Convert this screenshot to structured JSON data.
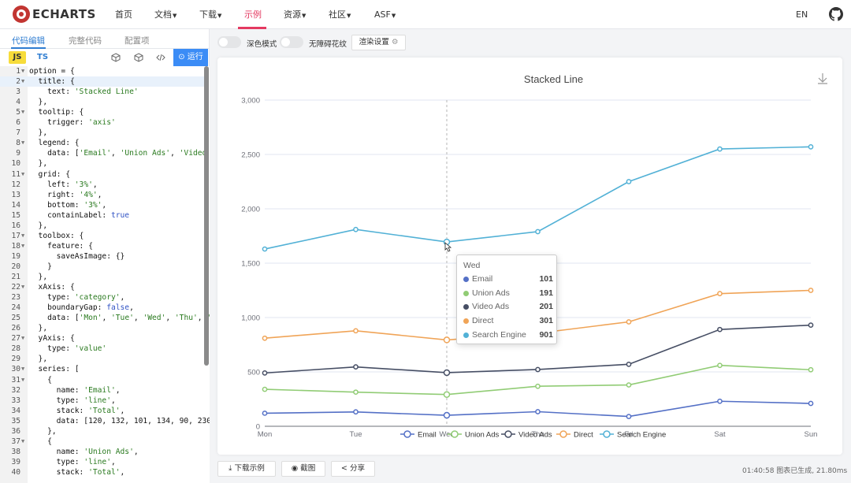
{
  "navbar": {
    "logo_text": "ECHARTS",
    "items": [
      {
        "label": "首页",
        "dropdown": false,
        "active": false
      },
      {
        "label": "文档",
        "dropdown": true,
        "active": false
      },
      {
        "label": "下载",
        "dropdown": true,
        "active": false
      },
      {
        "label": "示例",
        "dropdown": false,
        "active": true
      },
      {
        "label": "资源",
        "dropdown": true,
        "active": false
      },
      {
        "label": "社区",
        "dropdown": true,
        "active": false
      },
      {
        "label": "ASF",
        "dropdown": true,
        "active": false
      }
    ],
    "lang": "EN",
    "github_icon": "github-icon",
    "accent": "#e43961"
  },
  "editor_panel": {
    "tabs": [
      "代码编辑",
      "完整代码",
      "配置项"
    ],
    "active_tab": "代码编辑",
    "js_label": "JS",
    "ts_label": "TS",
    "run_label": "运行",
    "code_lines": [
      "option = {",
      "  title: {",
      "    text: 'Stacked Line'",
      "  },",
      "  tooltip: {",
      "    trigger: 'axis'",
      "  },",
      "  legend: {",
      "    data: ['Email', 'Union Ads', 'Video Ads'",
      "  },",
      "  grid: {",
      "    left: '3%',",
      "    right: '4%',",
      "    bottom: '3%',",
      "    containLabel: true",
      "  },",
      "  toolbox: {",
      "    feature: {",
      "      saveAsImage: {}",
      "    }",
      "  },",
      "  xAxis: {",
      "    type: 'category',",
      "    boundaryGap: false,",
      "    data: ['Mon', 'Tue', 'Wed', 'Thu', 'Fr",
      "  },",
      "  yAxis: {",
      "    type: 'value'",
      "  },",
      "  series: [",
      "    {",
      "      name: 'Email',",
      "      type: 'line',",
      "      stack: 'Total',",
      "      data: [120, 132, 101, 134, 90, 230,",
      "    },",
      "    {",
      "      name: 'Union Ads',",
      "      type: 'line',",
      "      stack: 'Total',"
    ],
    "fold_lines": [
      1,
      2,
      5,
      8,
      11,
      17,
      18,
      22,
      27,
      30,
      31,
      37
    ]
  },
  "options_bar": {
    "dark_mode_label": "深色模式",
    "decal_label": "无障碍花纹",
    "render_settings_label": "渲染设置"
  },
  "bottom_bar": {
    "download_label": "下载示例",
    "screenshot_label": "截图",
    "share_label": "分享",
    "status_text": "01:40:58  图表已生成, 21.80ms"
  },
  "tooltip": {
    "title": "Wed",
    "rows": [
      {
        "name": "Email",
        "value": "101"
      },
      {
        "name": "Union Ads",
        "value": "191"
      },
      {
        "name": "Video Ads",
        "value": "201"
      },
      {
        "name": "Direct",
        "value": "301"
      },
      {
        "name": "Search Engine",
        "value": "901"
      }
    ]
  },
  "chart_data": {
    "type": "line",
    "title": "Stacked Line",
    "stacked": true,
    "categories": [
      "Mon",
      "Tue",
      "Wed",
      "Thu",
      "Fri",
      "Sat",
      "Sun"
    ],
    "series": [
      {
        "name": "Email",
        "color": "#5470c6",
        "values": [
          120,
          132,
          101,
          134,
          90,
          230,
          210
        ]
      },
      {
        "name": "Union Ads",
        "color": "#91cc75",
        "values": [
          220,
          182,
          191,
          234,
          290,
          330,
          310
        ]
      },
      {
        "name": "Video Ads",
        "color": "#464e64",
        "values": [
          150,
          232,
          201,
          154,
          190,
          330,
          410
        ]
      },
      {
        "name": "Direct",
        "color": "#f0a457",
        "values": [
          320,
          332,
          301,
          334,
          390,
          330,
          320
        ]
      },
      {
        "name": "Search Engine",
        "color": "#52b1d6",
        "values": [
          820,
          932,
          901,
          934,
          1290,
          1330,
          1320
        ]
      }
    ],
    "ylim": [
      0,
      3000
    ],
    "yticks": [
      0,
      500,
      1000,
      1500,
      2000,
      2500,
      3000
    ],
    "ytick_labels": [
      "0",
      "500",
      "1,000",
      "1,500",
      "2,000",
      "2,500",
      "3,000"
    ],
    "grid": true,
    "legend_position": "bottom",
    "hovered_category": "Wed",
    "toolbox_icon": "download-icon"
  }
}
